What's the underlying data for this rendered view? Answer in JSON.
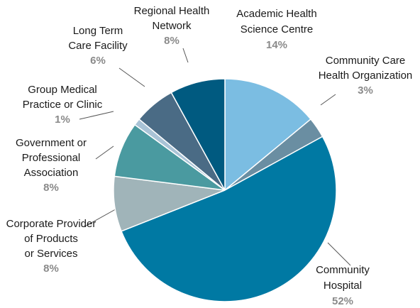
{
  "chart_data": {
    "type": "pie",
    "categories": [
      "Academic Health\nScience Centre",
      "Community Care\nHealth Organization",
      "Community\nHospital",
      "Corporate Provider\nof Products\nor Services",
      "Government or\nProfessional\nAssociation",
      "Group Medical\nPractice or Clinic",
      "Long Term\nCare Facility",
      "Regional Health\nNetwork"
    ],
    "values": [
      14,
      3,
      52,
      8,
      8,
      1,
      6,
      8
    ],
    "value_labels": [
      "14%",
      "3%",
      "52%",
      "8%",
      "8%",
      "1%",
      "6%",
      "8%"
    ],
    "colors": [
      "#7bbde2",
      "#6a8ea2",
      "#0079a3",
      "#a0b4b9",
      "#4a9aa0",
      "#a9c3d6",
      "#4a6b85",
      "#005a80"
    ]
  }
}
